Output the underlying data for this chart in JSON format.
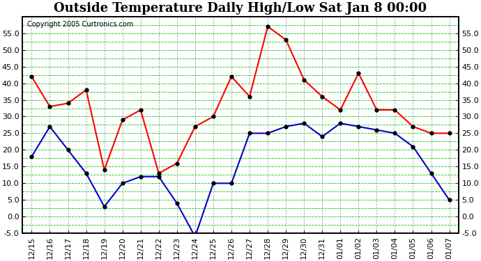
{
  "title": "Outside Temperature Daily High/Low Sat Jan 8 00:00",
  "copyright": "Copyright 2005 Curtronics.com",
  "x_labels": [
    "12/15",
    "12/16",
    "12/17",
    "12/18",
    "12/19",
    "12/20",
    "12/21",
    "12/22",
    "12/23",
    "12/24",
    "12/25",
    "12/26",
    "12/27",
    "12/28",
    "12/29",
    "12/30",
    "12/31",
    "01/01",
    "01/02",
    "01/03",
    "01/04",
    "01/05",
    "01/06",
    "01/07"
  ],
  "high_values": [
    42,
    33,
    34,
    38,
    14,
    29,
    32,
    13,
    16,
    27,
    30,
    42,
    36,
    57,
    53,
    41,
    36,
    32,
    43,
    32,
    32,
    27,
    25,
    25
  ],
  "low_values": [
    18,
    27,
    20,
    13,
    3,
    10,
    12,
    12,
    4,
    -6,
    10,
    10,
    25,
    25,
    27,
    28,
    24,
    28,
    27,
    26,
    25,
    21,
    13,
    5
  ],
  "high_color": "#ff0000",
  "low_color": "#0000cc",
  "dot_color": "#000000",
  "bg_color": "#ffffff",
  "plot_bg": "#ffffff",
  "grid_major_color": "#00cc00",
  "grid_minor_color": "#00cc00",
  "vgrid_color": "#aaaaaa",
  "y_min": -5,
  "y_max": 60,
  "y_ticks": [
    -5.0,
    0.0,
    5.0,
    10.0,
    15.0,
    20.0,
    25.0,
    30.0,
    35.0,
    40.0,
    45.0,
    50.0,
    55.0
  ],
  "title_fontsize": 13,
  "copyright_fontsize": 7,
  "axis_fontsize": 8
}
